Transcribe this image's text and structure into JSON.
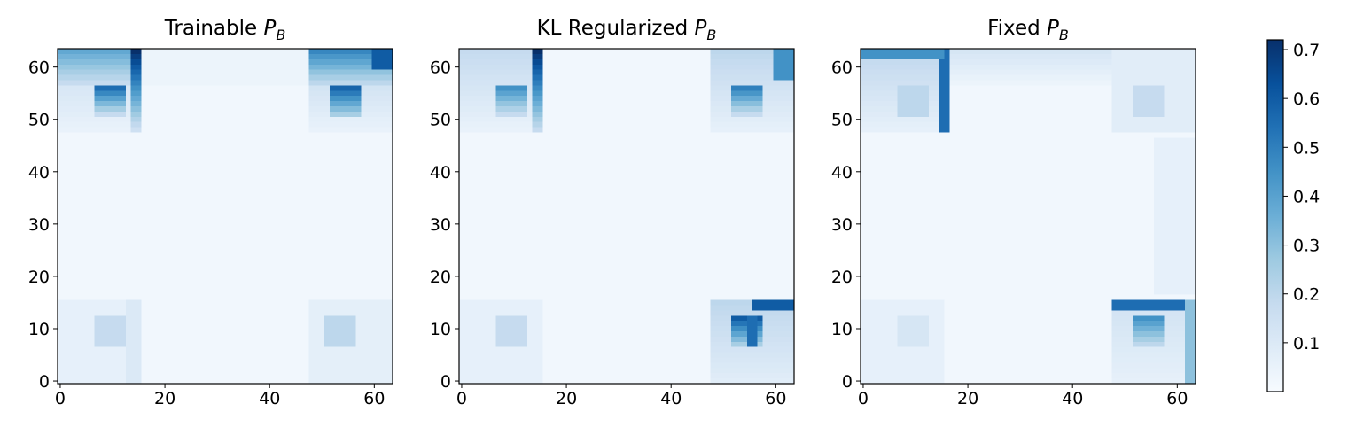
{
  "figure": {
    "colormap": {
      "name": "Blues",
      "min_color": "#f7fbff",
      "max_color": "#08306b",
      "range": [
        0.0,
        0.72
      ],
      "ticks": [
        0.1,
        0.2,
        0.3,
        0.4,
        0.5,
        0.6,
        0.7
      ],
      "tick_labels": [
        "0.1",
        "0.2",
        "0.3",
        "0.4",
        "0.5",
        "0.6",
        "0.7"
      ]
    }
  },
  "chart_data": [
    {
      "type": "heatmap",
      "title_text": "Trainable ",
      "title_math": "P",
      "title_sub": "B",
      "grid_size": 64,
      "xlim": [
        0,
        63
      ],
      "ylim": [
        0,
        63
      ],
      "xticks": [
        0,
        20,
        40,
        60
      ],
      "xtick_labels": [
        "0",
        "20",
        "40",
        "60"
      ],
      "yticks": [
        0,
        10,
        20,
        30,
        40,
        50,
        60
      ],
      "ytick_labels": [
        "0",
        "10",
        "20",
        "30",
        "40",
        "50",
        "60"
      ],
      "background": 0.02,
      "regions": [
        {
          "x": [
            0,
            15
          ],
          "y": [
            48,
            63
          ],
          "v0": 0.17,
          "v1": 0.05,
          "dir": "down"
        },
        {
          "x": [
            48,
            63
          ],
          "y": [
            48,
            63
          ],
          "v0": 0.2,
          "v1": 0.05,
          "dir": "down"
        },
        {
          "x": [
            0,
            15
          ],
          "y": [
            0,
            15
          ],
          "v": 0.06
        },
        {
          "x": [
            48,
            63
          ],
          "y": [
            0,
            15
          ],
          "v": 0.07
        },
        {
          "x": [
            16,
            47
          ],
          "y": [
            57,
            63
          ],
          "v": 0.04
        },
        {
          "x": [
            0,
            15
          ],
          "y": [
            57,
            63
          ],
          "v0": 0.38,
          "v1": 0.18,
          "dir": "down"
        },
        {
          "x": [
            48,
            63
          ],
          "y": [
            57,
            63
          ],
          "v0": 0.48,
          "v1": 0.2,
          "dir": "down"
        },
        {
          "x": [
            14,
            15
          ],
          "y": [
            48,
            63
          ],
          "v0": 0.72,
          "v1": 0.15,
          "dir": "down"
        },
        {
          "x": [
            60,
            63
          ],
          "y": [
            60,
            63
          ],
          "v": 0.6
        },
        {
          "x": [
            7,
            12
          ],
          "y": [
            51,
            56
          ],
          "v0": 0.55,
          "v1": 0.18,
          "dir": "down"
        },
        {
          "x": [
            52,
            57
          ],
          "y": [
            51,
            56
          ],
          "v0": 0.58,
          "v1": 0.25,
          "dir": "down"
        },
        {
          "x": [
            7,
            12
          ],
          "y": [
            7,
            12
          ],
          "v": 0.18
        },
        {
          "x": [
            51,
            56
          ],
          "y": [
            7,
            12
          ],
          "v": 0.2
        },
        {
          "x": [
            13,
            15
          ],
          "y": [
            0,
            15
          ],
          "v": 0.1
        }
      ]
    },
    {
      "type": "heatmap",
      "title_text": "KL Regularized ",
      "title_math": "P",
      "title_sub": "B",
      "grid_size": 64,
      "xlim": [
        0,
        63
      ],
      "ylim": [
        0,
        63
      ],
      "xticks": [
        0,
        20,
        40,
        60
      ],
      "xtick_labels": [
        "0",
        "20",
        "40",
        "60"
      ],
      "yticks": [
        0,
        10,
        20,
        30,
        40,
        50,
        60
      ],
      "ytick_labels": [
        "0",
        "10",
        "20",
        "30",
        "40",
        "50",
        "60"
      ],
      "background": 0.02,
      "regions": [
        {
          "x": [
            0,
            15
          ],
          "y": [
            48,
            63
          ],
          "v0": 0.18,
          "v1": 0.05,
          "dir": "down"
        },
        {
          "x": [
            48,
            63
          ],
          "y": [
            48,
            63
          ],
          "v0": 0.2,
          "v1": 0.06,
          "dir": "down"
        },
        {
          "x": [
            0,
            15
          ],
          "y": [
            0,
            15
          ],
          "v": 0.06
        },
        {
          "x": [
            48,
            63
          ],
          "y": [
            0,
            15
          ],
          "v0": 0.2,
          "v1": 0.08,
          "dir": "down"
        },
        {
          "x": [
            14,
            15
          ],
          "y": [
            48,
            63
          ],
          "v0": 0.72,
          "v1": 0.18,
          "dir": "down"
        },
        {
          "x": [
            60,
            63
          ],
          "y": [
            58,
            63
          ],
          "v": 0.45
        },
        {
          "x": [
            56,
            63
          ],
          "y": [
            14,
            15
          ],
          "v": 0.6
        },
        {
          "x": [
            7,
            12
          ],
          "y": [
            51,
            56
          ],
          "v0": 0.45,
          "v1": 0.18,
          "dir": "down"
        },
        {
          "x": [
            52,
            57
          ],
          "y": [
            51,
            56
          ],
          "v0": 0.5,
          "v1": 0.18,
          "dir": "down"
        },
        {
          "x": [
            7,
            12
          ],
          "y": [
            7,
            12
          ],
          "v": 0.18
        },
        {
          "x": [
            52,
            57
          ],
          "y": [
            7,
            12
          ],
          "v0": 0.6,
          "v1": 0.25,
          "dir": "down"
        },
        {
          "x": [
            55,
            56
          ],
          "y": [
            7,
            12
          ],
          "v": 0.55
        }
      ]
    },
    {
      "type": "heatmap",
      "title_text": "Fixed ",
      "title_math": "P",
      "title_sub": "B",
      "grid_size": 64,
      "xlim": [
        0,
        63
      ],
      "ylim": [
        0,
        63
      ],
      "xticks": [
        0,
        20,
        40,
        60
      ],
      "xtick_labels": [
        "0",
        "20",
        "40",
        "60"
      ],
      "yticks": [
        0,
        10,
        20,
        30,
        40,
        50,
        60
      ],
      "ytick_labels": [
        "0",
        "10",
        "20",
        "30",
        "40",
        "50",
        "60"
      ],
      "background": 0.02,
      "regions": [
        {
          "x": [
            0,
            15
          ],
          "y": [
            48,
            63
          ],
          "v0": 0.2,
          "v1": 0.06,
          "dir": "down"
        },
        {
          "x": [
            48,
            63
          ],
          "y": [
            48,
            63
          ],
          "v": 0.08
        },
        {
          "x": [
            0,
            15
          ],
          "y": [
            0,
            15
          ],
          "v": 0.06
        },
        {
          "x": [
            48,
            63
          ],
          "y": [
            0,
            15
          ],
          "v0": 0.14,
          "v1": 0.06,
          "dir": "down"
        },
        {
          "x": [
            16,
            47
          ],
          "y": [
            57,
            63
          ],
          "v0": 0.12,
          "v1": 0.04,
          "dir": "down"
        },
        {
          "x": [
            56,
            63
          ],
          "y": [
            17,
            46
          ],
          "v": 0.06
        },
        {
          "x": [
            15,
            16
          ],
          "y": [
            48,
            63
          ],
          "v": 0.55
        },
        {
          "x": [
            0,
            15
          ],
          "y": [
            62,
            63
          ],
          "v": 0.45
        },
        {
          "x": [
            48,
            63
          ],
          "y": [
            14,
            15
          ],
          "v": 0.55
        },
        {
          "x": [
            62,
            63
          ],
          "y": [
            0,
            15
          ],
          "v": 0.3
        },
        {
          "x": [
            7,
            12
          ],
          "y": [
            51,
            56
          ],
          "v": 0.2
        },
        {
          "x": [
            52,
            57
          ],
          "y": [
            51,
            56
          ],
          "v": 0.18
        },
        {
          "x": [
            7,
            12
          ],
          "y": [
            7,
            12
          ],
          "v": 0.12
        },
        {
          "x": [
            52,
            57
          ],
          "y": [
            7,
            12
          ],
          "v0": 0.45,
          "v1": 0.2,
          "dir": "down"
        }
      ]
    }
  ]
}
